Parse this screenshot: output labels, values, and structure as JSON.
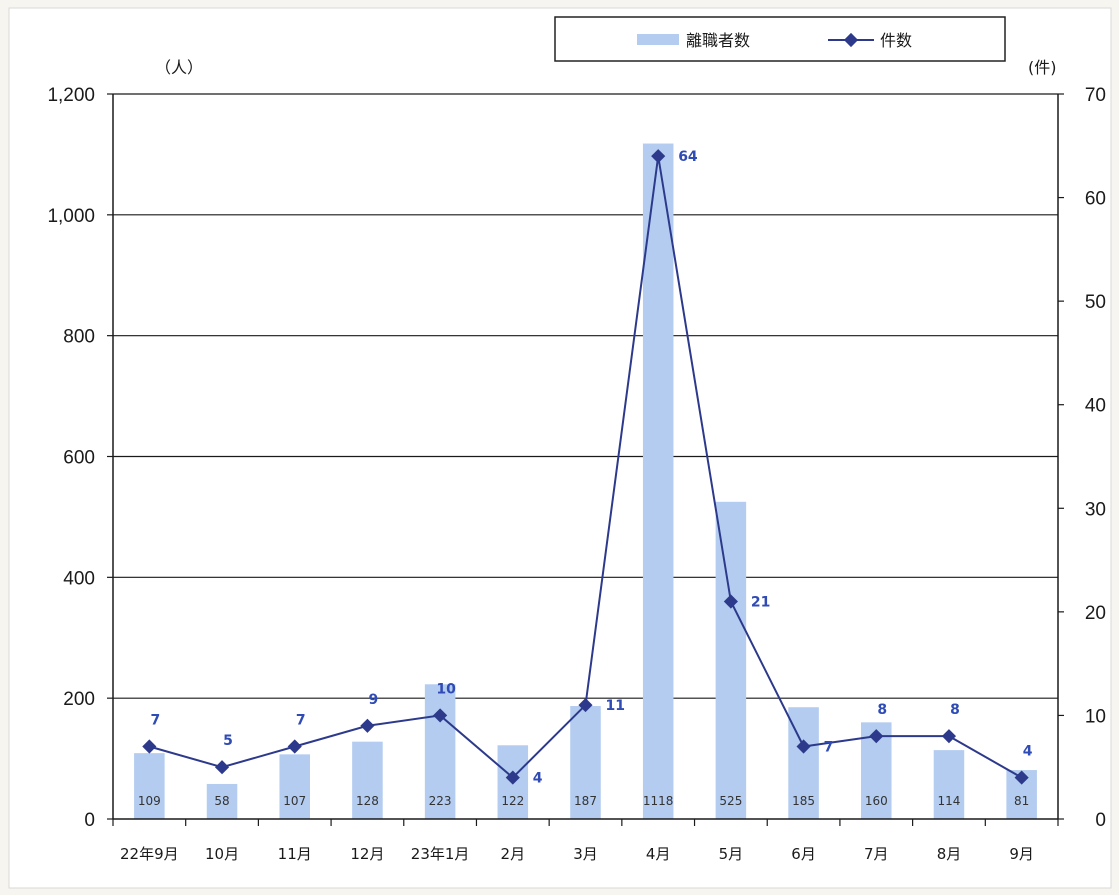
{
  "chart_data": {
    "type": "bar",
    "categories": [
      "22年9月",
      "10月",
      "11月",
      "12月",
      "23年1月",
      "2月",
      "3月",
      "4月",
      "5月",
      "6月",
      "7月",
      "8月",
      "9月"
    ],
    "series": [
      {
        "name": "離職者数",
        "type": "bar",
        "axis": "left",
        "values": [
          109,
          58,
          107,
          128,
          223,
          122,
          187,
          1118,
          525,
          185,
          160,
          114,
          81
        ]
      },
      {
        "name": "件数",
        "type": "line",
        "axis": "right",
        "values": [
          7,
          5,
          7,
          9,
          10,
          4,
          11,
          64,
          21,
          7,
          8,
          8,
          4
        ]
      }
    ],
    "y_left": {
      "unit": "（人）",
      "ylim": [
        0,
        1200
      ],
      "ticks": [
        "0",
        "200",
        "400",
        "600",
        "800",
        "1,000",
        "1,200"
      ]
    },
    "y_right": {
      "unit": "(件)",
      "ylim": [
        0,
        70
      ],
      "ticks": [
        "0",
        "10",
        "20",
        "30",
        "40",
        "50",
        "60",
        "70"
      ]
    },
    "grid": true,
    "legend": "top-right",
    "colors": {
      "bar": "#b3ccf0",
      "line": "#2d3a8c",
      "line_label": "#2f4bb5"
    }
  }
}
